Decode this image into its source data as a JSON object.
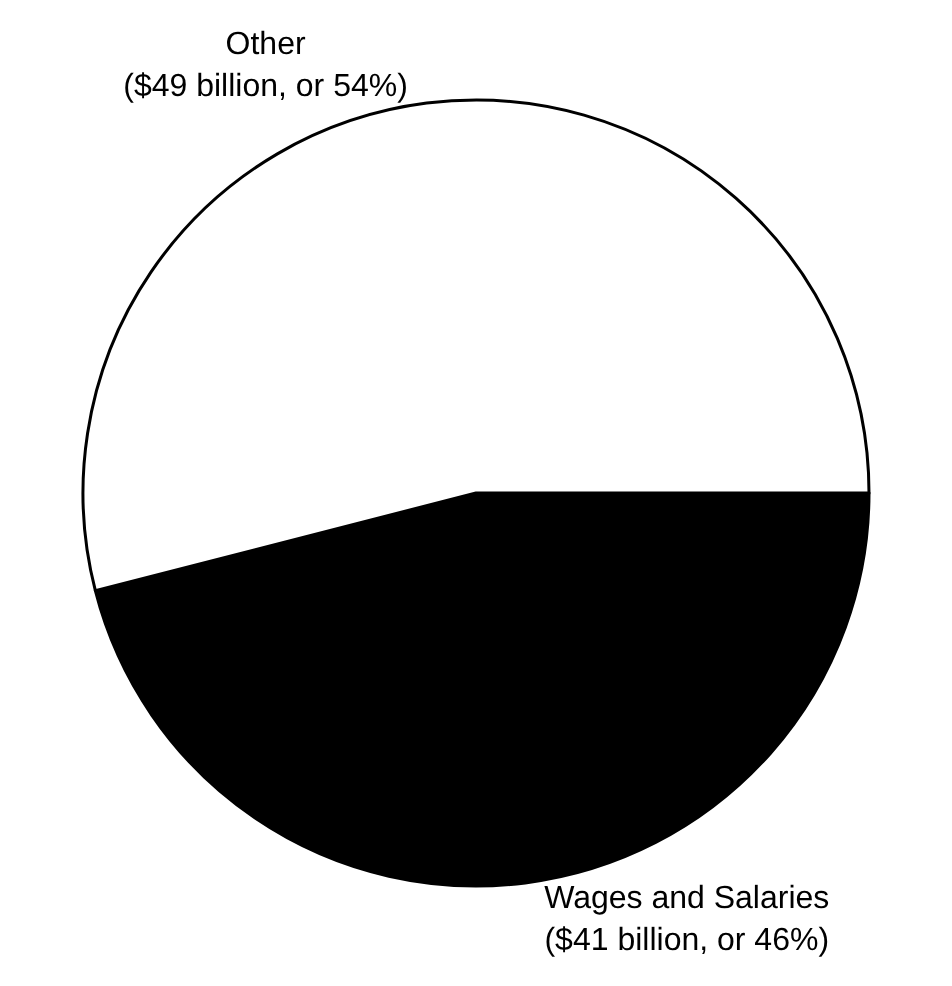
{
  "chart_data": {
    "type": "pie",
    "categories": [
      "Wages and Salaries",
      "Other"
    ],
    "values": [
      46,
      54
    ],
    "value_labels": [
      "($41 billion, or 46%)",
      "($49 billion, or 54%)"
    ],
    "colors": [
      "#000000",
      "#ffffff"
    ],
    "legend": false
  }
}
